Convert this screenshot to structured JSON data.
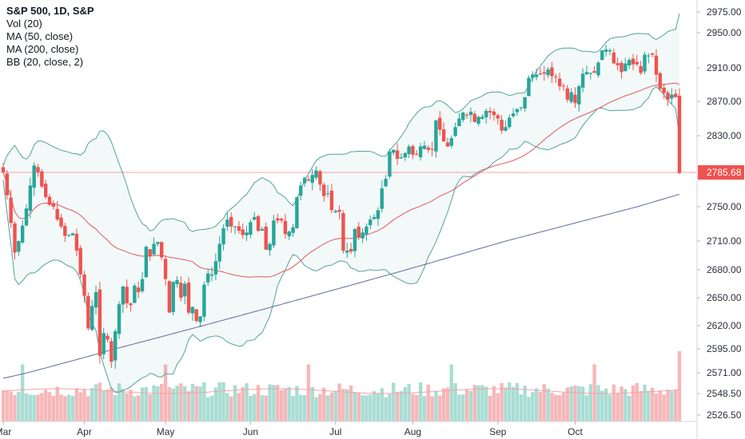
{
  "chart_data": {
    "type": "candlestick",
    "title": "S&P 500, 1D, S&P",
    "legend": {
      "placement": "top-left",
      "items": [
        "S&P 500, 1D, S&P",
        "Vol (20)",
        "MA (50, close)",
        "MA (200, close)",
        "BB (20, close, 2)"
      ]
    },
    "last_price": "2785.68",
    "y_ticks": [
      "2975.00",
      "2950.00",
      "2910.00",
      "2870.00",
      "2830.00",
      "2785.68",
      "2750.00",
      "2710.00",
      "2680.00",
      "2650.00",
      "2620.00",
      "2595.00",
      "2571.00",
      "2548.50",
      "2526.50"
    ],
    "x_ticks": [
      "Mar",
      "Apr",
      "May",
      "Jun",
      "Jul",
      "Aug",
      "Sep",
      "Oct"
    ],
    "close": [
      2786,
      2762,
      2731,
      2698,
      2710,
      2728,
      2748,
      2772,
      2794,
      2786,
      2771,
      2760,
      2752,
      2750,
      2735,
      2727,
      2716,
      2717,
      2719,
      2700,
      2675,
      2652,
      2617,
      2641,
      2656,
      2588,
      2612,
      2605,
      2582,
      2614,
      2643,
      2662,
      2644,
      2642,
      2663,
      2656,
      2670,
      2704,
      2694,
      2707,
      2709,
      2693,
      2670,
      2634,
      2667,
      2669,
      2650,
      2665,
      2634,
      2640,
      2625,
      2630,
      2664,
      2676,
      2675,
      2689,
      2707,
      2725,
      2735,
      2727,
      2727,
      2722,
      2717,
      2720,
      2732,
      2738,
      2722,
      2724,
      2701,
      2707,
      2734,
      2734,
      2734,
      2718,
      2721,
      2726,
      2760,
      2772,
      2780,
      2777,
      2783,
      2788,
      2773,
      2761,
      2764,
      2746,
      2745,
      2744,
      2700,
      2700,
      2699,
      2724,
      2714,
      2720,
      2727,
      2735,
      2738,
      2746,
      2769,
      2779,
      2811,
      2813,
      2802,
      2804,
      2809,
      2817,
      2807,
      2807,
      2817,
      2818,
      2813,
      2813,
      2848,
      2837,
      2823,
      2817,
      2827,
      2840,
      2850,
      2857,
      2854,
      2858,
      2846,
      2852,
      2852,
      2859,
      2857,
      2854,
      2850,
      2836,
      2840,
      2851,
      2856,
      2861,
      2863,
      2875,
      2898,
      2902,
      2902,
      2902,
      2903,
      2908,
      2900,
      2899,
      2888,
      2888,
      2872,
      2881,
      2868,
      2888,
      2903,
      2905,
      2904,
      2904,
      2916,
      2930,
      2931,
      2930,
      2915,
      2913,
      2905,
      2915,
      2919,
      2914,
      2914,
      2904,
      2925,
      2924,
      2925,
      2902,
      2885,
      2880,
      2872,
      2878,
      2875,
      2785
    ],
    "volume_unit": "relative",
    "moving_averages": [
      {
        "name": "MA (50, close)",
        "color": "#e0585f"
      },
      {
        "name": "MA (200, close)",
        "color": "#5d6a99"
      }
    ],
    "bollinger": {
      "name": "BB (20, close, 2)",
      "color": "#52a39b",
      "fill": "#52a39b"
    },
    "colors": {
      "up": "#26a69a",
      "down": "#ef5350",
      "vol_up": "#a9ddd3",
      "vol_down": "#f7b7b9",
      "price_line": "#ef5350",
      "last_tag": "#ef5350"
    },
    "grid": false
  }
}
